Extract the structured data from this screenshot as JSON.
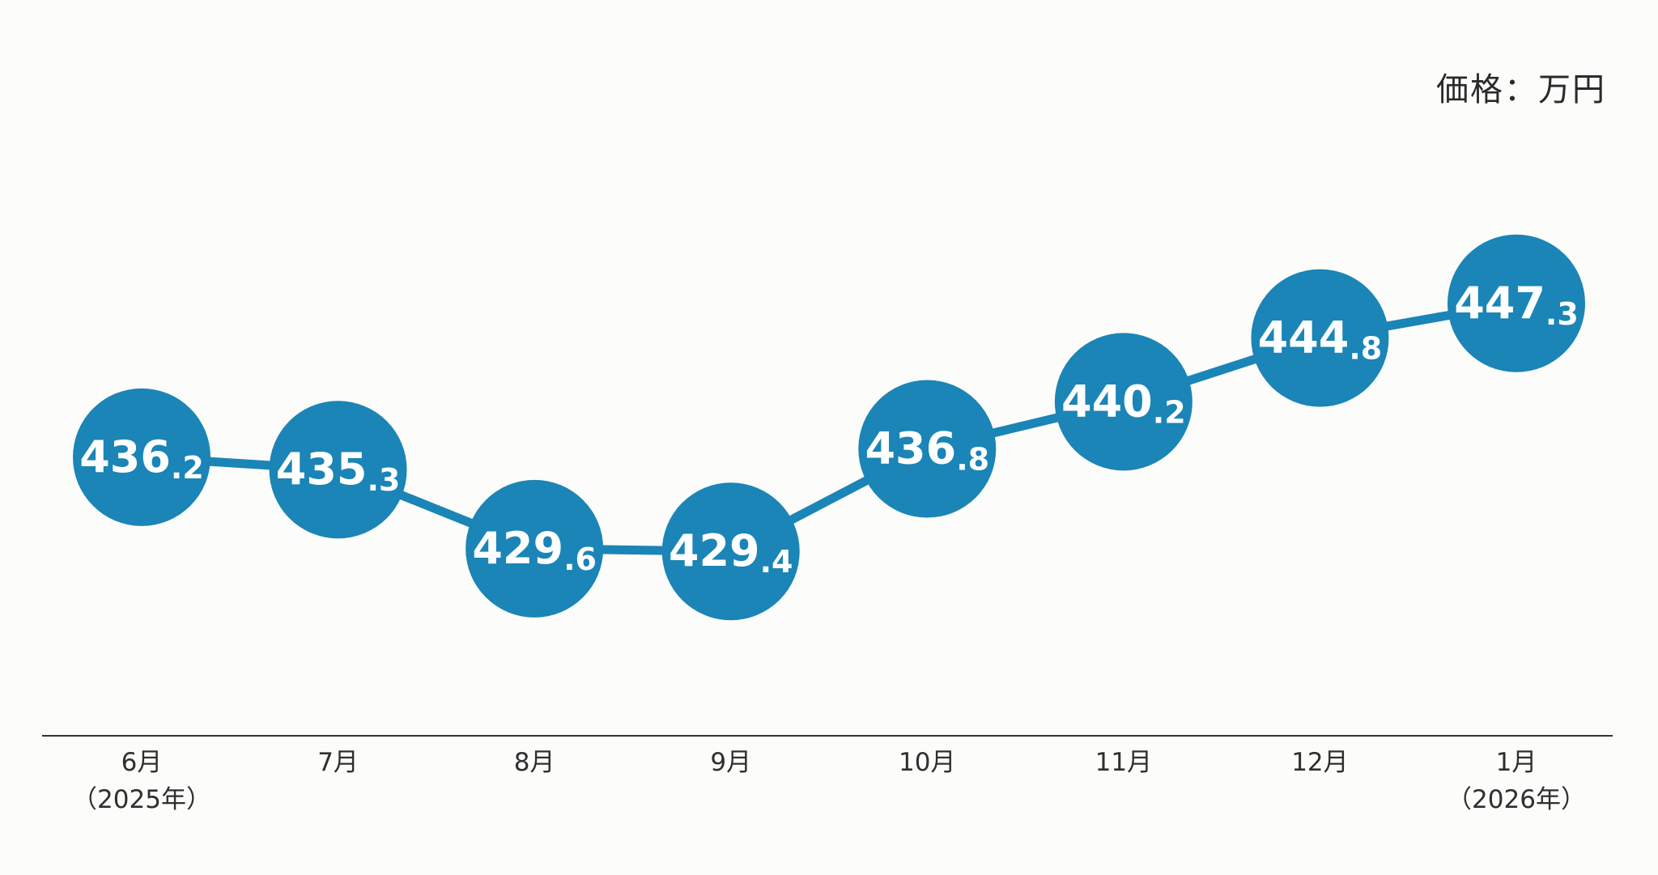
{
  "unit_label": "価格：万円",
  "colors": {
    "marker": "#1a85b6",
    "line": "#1a85b6",
    "axis": "#333333",
    "text": "#2a2a2a",
    "background": "#fcfcfa"
  },
  "chart_data": {
    "type": "line",
    "categories": [
      [
        "6月",
        "（2025年）"
      ],
      [
        "7月"
      ],
      [
        "8月"
      ],
      [
        "9月"
      ],
      [
        "10月"
      ],
      [
        "11月"
      ],
      [
        "12月"
      ],
      [
        "1月",
        "（2026年）"
      ]
    ],
    "series": [
      {
        "values": [
          436.2,
          435.3,
          429.6,
          429.4,
          436.8,
          440.2,
          444.8,
          447.3
        ],
        "labels": [
          [
            "436",
            ".2"
          ],
          [
            "435",
            ".3"
          ],
          [
            "429",
            ".6"
          ],
          [
            "429",
            ".4"
          ],
          [
            "436",
            ".8"
          ],
          [
            "440",
            ".2"
          ],
          [
            "444",
            ".8"
          ],
          [
            "447",
            ".3"
          ]
        ]
      }
    ],
    "ylim": [
      424.8,
      450.5
    ],
    "grid": false,
    "legend": "none"
  }
}
